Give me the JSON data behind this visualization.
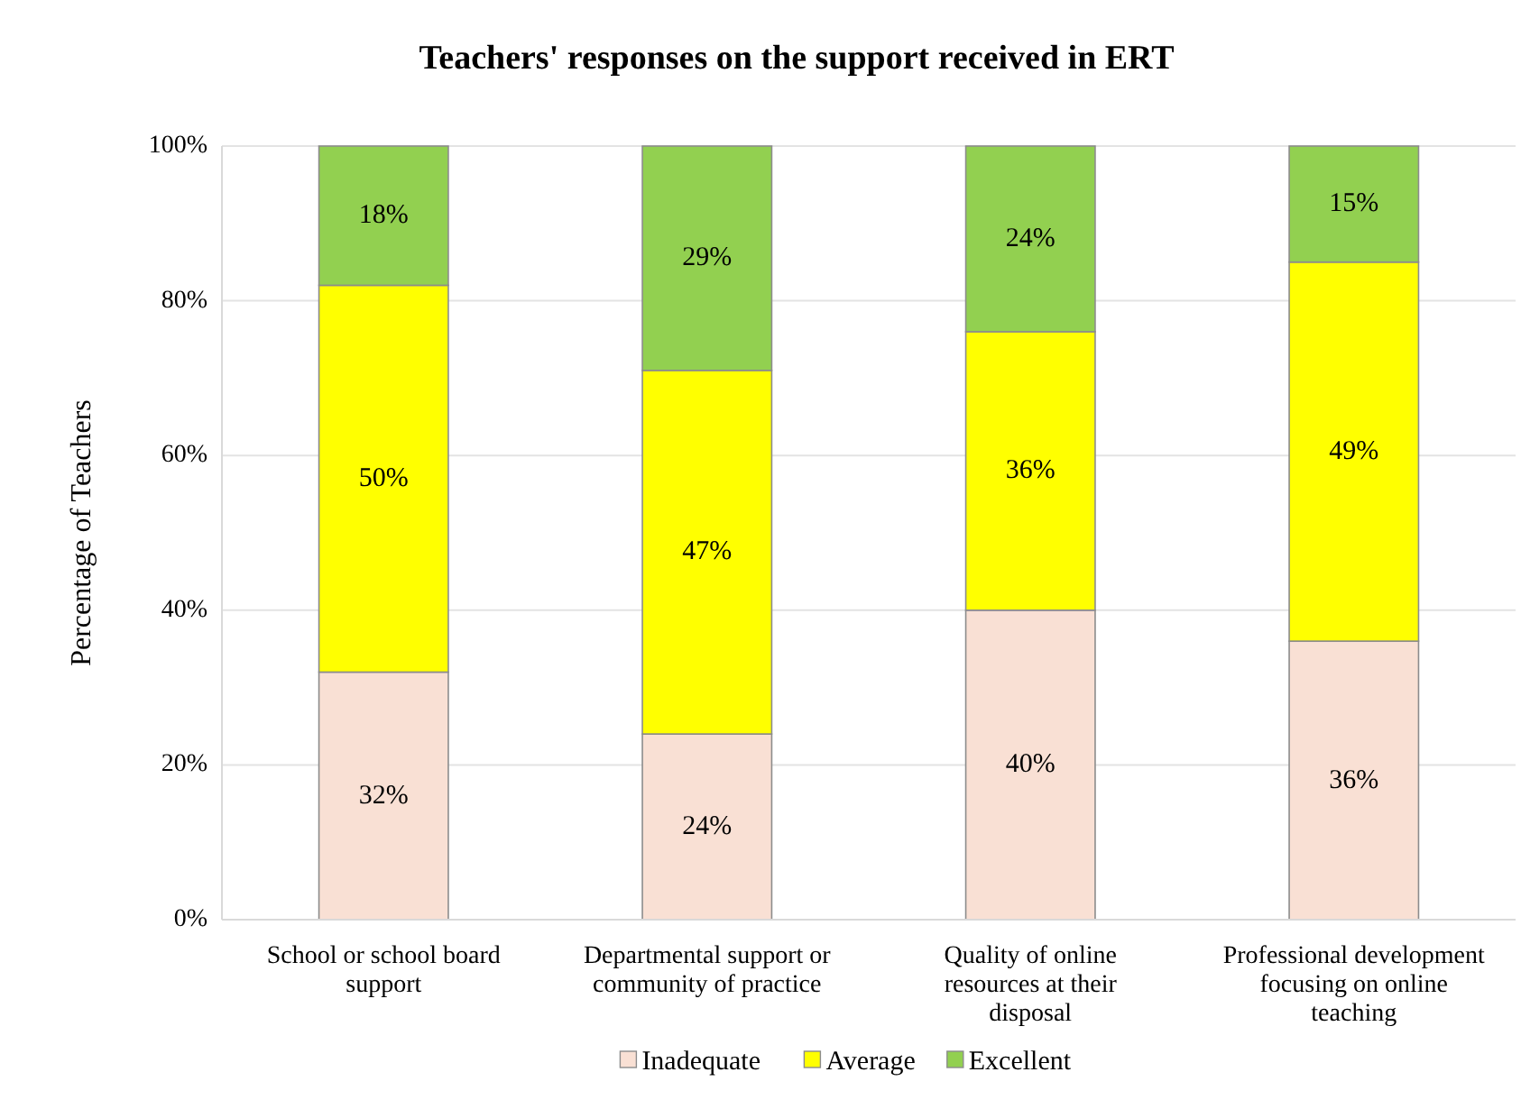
{
  "chart_data": {
    "type": "bar",
    "title": "Teachers' responses on the support received in ERT",
    "ylabel": "Percentage of Teachers",
    "categories": [
      "School or school board support",
      "Departmental support or community of practice",
      "Quality of online resources at their disposal",
      "Professional development focusing on online teaching"
    ],
    "stacked": true,
    "series": [
      {
        "name": "Inadequate",
        "color": "#f9e0d4",
        "values": [
          32,
          24,
          40,
          36
        ],
        "value_labels": [
          "32%",
          "24%",
          "40%",
          "36%"
        ]
      },
      {
        "name": "Average",
        "color": "#ffff00",
        "values": [
          50,
          47,
          36,
          49
        ],
        "value_labels": [
          "50%",
          "47%",
          "36%",
          "49%"
        ]
      },
      {
        "name": "Excellent",
        "color": "#92d050",
        "values": [
          18,
          29,
          24,
          15
        ],
        "value_labels": [
          "18%",
          "29%",
          "24%",
          "15%"
        ]
      }
    ],
    "ylim": [
      0,
      100
    ],
    "yticks": [
      {
        "value": 0,
        "label": "0%"
      },
      {
        "value": 20,
        "label": "20%"
      },
      {
        "value": 40,
        "label": "40%"
      },
      {
        "value": 60,
        "label": "60%"
      },
      {
        "value": 80,
        "label": "80%"
      },
      {
        "value": 100,
        "label": "100%"
      }
    ],
    "grid": "y",
    "legend": "bottom"
  }
}
